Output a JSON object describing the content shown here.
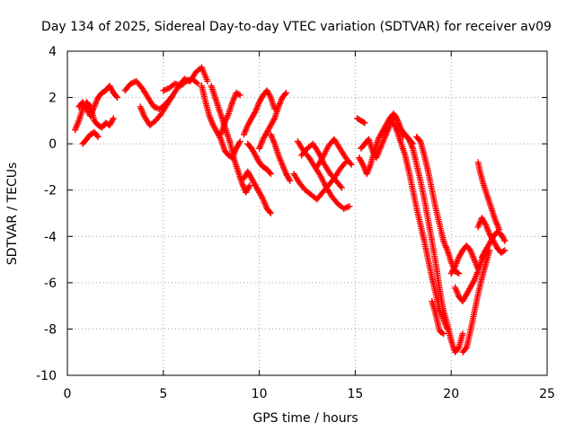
{
  "chart_data": {
    "type": "scatter",
    "title": "Day 134 of 2025, Sidereal Day-to-day VTEC variation (SDTVAR) for receiver av09",
    "xlabel": "GPS time / hours",
    "ylabel": "SDTVAR / TECUs",
    "xlim": [
      0,
      25
    ],
    "ylim": [
      -10,
      4
    ],
    "xticks": [
      0,
      5,
      10,
      15,
      20,
      25
    ],
    "yticks": [
      -10,
      -8,
      -6,
      -4,
      -2,
      0,
      2,
      4
    ],
    "xtick_labels": [
      "0",
      "5",
      "10",
      "15",
      "20",
      "25"
    ],
    "ytick_labels": [
      "-10",
      "-8",
      "-6",
      "-4",
      "-2",
      "0",
      "2",
      "4"
    ],
    "grid": true,
    "marker": "+",
    "marker_color": "#ff0000",
    "series": [
      {
        "name": "s1",
        "x": [
          0.4,
          0.6,
          0.8,
          1.0,
          1.2,
          1.4,
          1.6,
          1.8,
          2.0,
          2.2,
          2.4
        ],
        "y": [
          0.6,
          1.0,
          1.5,
          1.8,
          1.6,
          1.0,
          0.8,
          0.7,
          0.9,
          0.8,
          1.1
        ]
      },
      {
        "name": "s2",
        "x": [
          0.6,
          0.8,
          1.0,
          1.2,
          1.4,
          1.6,
          1.8,
          2.0,
          2.2,
          2.4,
          2.6
        ],
        "y": [
          1.6,
          1.8,
          1.5,
          1.2,
          1.6,
          2.0,
          2.2,
          2.3,
          2.5,
          2.2,
          2.0
        ]
      },
      {
        "name": "s3",
        "x": [
          0.8,
          1.0,
          1.2,
          1.4,
          1.6
        ],
        "y": [
          0.0,
          0.2,
          0.4,
          0.5,
          0.3
        ]
      },
      {
        "name": "s4",
        "x": [
          3.0,
          3.3,
          3.6,
          3.9,
          4.2,
          4.5,
          4.8,
          5.1,
          5.4
        ],
        "y": [
          2.3,
          2.6,
          2.7,
          2.4,
          2.0,
          1.6,
          1.5,
          1.7,
          2.0
        ]
      },
      {
        "name": "s5",
        "x": [
          3.8,
          4.0,
          4.3,
          4.6,
          4.9,
          5.2,
          5.5,
          5.8,
          6.1,
          6.4,
          6.7,
          7.0,
          7.3
        ],
        "y": [
          1.6,
          1.2,
          0.8,
          1.0,
          1.3,
          1.7,
          2.1,
          2.5,
          2.8,
          2.7,
          3.1,
          3.3,
          2.7
        ]
      },
      {
        "name": "s6",
        "x": [
          5.0,
          5.3,
          5.6,
          5.9,
          6.2,
          6.5,
          6.8
        ],
        "y": [
          2.3,
          2.4,
          2.6,
          2.5,
          2.7,
          2.8,
          2.6
        ]
      },
      {
        "name": "s7",
        "x": [
          7.0,
          7.2,
          7.4,
          7.6,
          7.8,
          8.0,
          8.2,
          8.4,
          8.6,
          8.8,
          9.0
        ],
        "y": [
          2.5,
          1.8,
          1.2,
          0.8,
          0.5,
          0.2,
          -0.3,
          -0.5,
          -0.6,
          -0.2,
          0.1
        ]
      },
      {
        "name": "s8",
        "x": [
          7.5,
          7.7,
          7.9,
          8.1,
          8.3,
          8.5,
          8.7,
          8.9,
          9.1,
          9.3,
          9.5
        ],
        "y": [
          2.5,
          2.0,
          1.5,
          1.0,
          0.5,
          0.0,
          -0.7,
          -1.2,
          -1.7,
          -2.1,
          -1.8
        ]
      },
      {
        "name": "s9",
        "x": [
          8.0,
          8.2,
          8.4,
          8.6,
          8.8,
          9.0
        ],
        "y": [
          0.4,
          0.9,
          1.3,
          1.8,
          2.2,
          2.1
        ]
      },
      {
        "name": "s10",
        "x": [
          9.2,
          9.4,
          9.6,
          9.8,
          10.0,
          10.2,
          10.4,
          10.6
        ],
        "y": [
          -1.5,
          -1.2,
          -1.5,
          -1.8,
          -2.1,
          -2.4,
          -2.8,
          -3.0
        ]
      },
      {
        "name": "s11",
        "x": [
          9.2,
          9.4,
          9.6,
          9.8,
          10.0,
          10.2,
          10.4,
          10.6,
          10.8
        ],
        "y": [
          0.4,
          0.8,
          1.1,
          1.4,
          1.8,
          2.1,
          2.3,
          2.0,
          1.5
        ]
      },
      {
        "name": "s12",
        "x": [
          9.4,
          9.6,
          9.8,
          10.0,
          10.2,
          10.4,
          10.6
        ],
        "y": [
          0.0,
          -0.2,
          -0.5,
          -0.8,
          -1.0,
          -1.1,
          -1.3
        ]
      },
      {
        "name": "s13",
        "x": [
          10.0,
          10.2,
          10.4,
          10.6,
          10.8,
          11.0,
          11.2,
          11.4
        ],
        "y": [
          -0.2,
          0.2,
          0.5,
          0.8,
          1.1,
          1.6,
          2.0,
          2.2
        ]
      },
      {
        "name": "s14",
        "x": [
          10.6,
          10.8,
          11.0,
          11.2,
          11.4,
          11.6
        ],
        "y": [
          0.4,
          0.0,
          -0.5,
          -0.9,
          -1.3,
          -1.6
        ]
      },
      {
        "name": "s15",
        "x": [
          12.0,
          12.3,
          12.6,
          12.9,
          13.2,
          13.5,
          13.8,
          14.1,
          14.4,
          14.7
        ],
        "y": [
          0.1,
          -0.3,
          -0.6,
          -1.0,
          -1.4,
          -1.9,
          -2.3,
          -2.6,
          -2.8,
          -2.7
        ]
      },
      {
        "name": "s16",
        "x": [
          11.8,
          12.1,
          12.4,
          12.7,
          13.0,
          13.3,
          13.6,
          13.9,
          14.2,
          14.5
        ],
        "y": [
          -1.3,
          -1.7,
          -2.0,
          -2.2,
          -2.4,
          -2.1,
          -1.8,
          -1.5,
          -1.1,
          -0.8
        ]
      },
      {
        "name": "s17",
        "x": [
          12.2,
          12.5,
          12.8,
          13.1,
          13.4,
          13.7,
          14.0,
          14.3
        ],
        "y": [
          -0.5,
          -0.2,
          0.0,
          -0.4,
          -0.9,
          -1.3,
          -1.6,
          -1.9
        ]
      },
      {
        "name": "s18",
        "x": [
          13.0,
          13.3,
          13.6,
          13.9,
          14.2,
          14.5,
          14.8
        ],
        "y": [
          -1.0,
          -0.6,
          -0.1,
          0.2,
          -0.2,
          -0.6,
          -0.9
        ]
      },
      {
        "name": "s19",
        "x": [
          15.1,
          15.3,
          15.5
        ],
        "y": [
          1.1,
          1.0,
          0.9
        ]
      },
      {
        "name": "s20",
        "x": [
          15.2,
          15.4,
          15.6,
          15.8,
          16.0,
          16.2,
          16.4,
          16.6,
          16.8,
          17.0,
          17.2,
          17.4,
          17.6,
          17.8,
          18.0
        ],
        "y": [
          -0.6,
          -0.9,
          -1.3,
          -0.9,
          -0.3,
          0.2,
          0.5,
          0.8,
          1.1,
          1.3,
          1.0,
          0.6,
          0.4,
          0.2,
          0.0
        ]
      },
      {
        "name": "s21",
        "x": [
          15.3,
          15.5,
          15.7,
          15.9,
          16.1,
          16.3,
          16.5,
          16.7,
          16.9,
          17.1,
          17.3,
          17.5
        ],
        "y": [
          -0.2,
          0.0,
          0.2,
          -0.3,
          -0.6,
          -0.2,
          0.2,
          0.6,
          1.0,
          1.2,
          0.8,
          0.3
        ]
      },
      {
        "name": "s22",
        "x": [
          17.0,
          17.2,
          17.4,
          17.6,
          17.8,
          18.0,
          18.2,
          18.4,
          18.6,
          18.8,
          19.0,
          19.2,
          19.4,
          19.6,
          19.8
        ],
        "y": [
          0.9,
          0.5,
          0.0,
          -0.5,
          -1.2,
          -2.0,
          -2.8,
          -3.5,
          -4.2,
          -5.0,
          -5.8,
          -6.5,
          -7.2,
          -7.6,
          -8.0
        ]
      },
      {
        "name": "s23",
        "x": [
          17.8,
          18.0,
          18.2,
          18.4,
          18.6,
          18.8,
          19.0,
          19.2,
          19.4,
          19.6,
          19.8,
          20.0,
          20.2,
          20.4,
          20.6
        ],
        "y": [
          0.2,
          -0.2,
          -0.9,
          -1.6,
          -2.4,
          -3.3,
          -4.2,
          -5.2,
          -6.3,
          -7.2,
          -7.8,
          -8.5,
          -9.0,
          -8.8,
          -8.2
        ]
      },
      {
        "name": "s24",
        "x": [
          18.2,
          18.4,
          18.6,
          18.8,
          19.0,
          19.2,
          19.4,
          19.6,
          19.8,
          20.0,
          20.2,
          20.4
        ],
        "y": [
          0.3,
          0.1,
          -0.5,
          -1.2,
          -2.0,
          -2.8,
          -3.5,
          -4.2,
          -4.6,
          -5.1,
          -5.5,
          -5.6
        ]
      },
      {
        "name": "s25",
        "x": [
          19.0,
          19.2,
          19.4,
          19.6
        ],
        "y": [
          -6.8,
          -7.4,
          -8.1,
          -8.2
        ]
      },
      {
        "name": "s26",
        "x": [
          20.0,
          20.2,
          20.4,
          20.6,
          20.8,
          21.0,
          21.2,
          21.4
        ],
        "y": [
          -5.6,
          -5.3,
          -4.9,
          -4.6,
          -4.4,
          -4.6,
          -5.0,
          -5.4
        ]
      },
      {
        "name": "s27",
        "x": [
          20.2,
          20.4,
          20.6,
          20.8,
          21.0,
          21.2,
          21.4,
          21.6,
          21.8
        ],
        "y": [
          -6.2,
          -6.6,
          -6.8,
          -6.5,
          -6.2,
          -5.9,
          -5.5,
          -5.0,
          -4.6
        ]
      },
      {
        "name": "s28",
        "x": [
          20.6,
          20.8,
          21.0,
          21.2,
          21.4,
          21.6,
          21.8,
          22.0
        ],
        "y": [
          -9.0,
          -8.8,
          -8.1,
          -7.3,
          -6.5,
          -5.8,
          -5.2,
          -4.6
        ]
      },
      {
        "name": "s29",
        "x": [
          21.4,
          21.5,
          21.7,
          21.9,
          22.1,
          22.3,
          22.5
        ],
        "y": [
          -0.8,
          -1.2,
          -1.8,
          -2.3,
          -2.8,
          -3.3,
          -3.7
        ]
      },
      {
        "name": "s30",
        "x": [
          21.4,
          21.6,
          21.8,
          22.0,
          22.2,
          22.4,
          22.6,
          22.8
        ],
        "y": [
          -3.6,
          -3.2,
          -3.5,
          -3.9,
          -4.2,
          -4.5,
          -4.7,
          -4.6
        ]
      },
      {
        "name": "s31",
        "x": [
          21.6,
          21.8,
          22.0,
          22.2,
          22.4,
          22.6,
          22.8
        ],
        "y": [
          -4.9,
          -4.6,
          -4.3,
          -4.0,
          -3.8,
          -3.9,
          -4.2
        ]
      }
    ]
  }
}
